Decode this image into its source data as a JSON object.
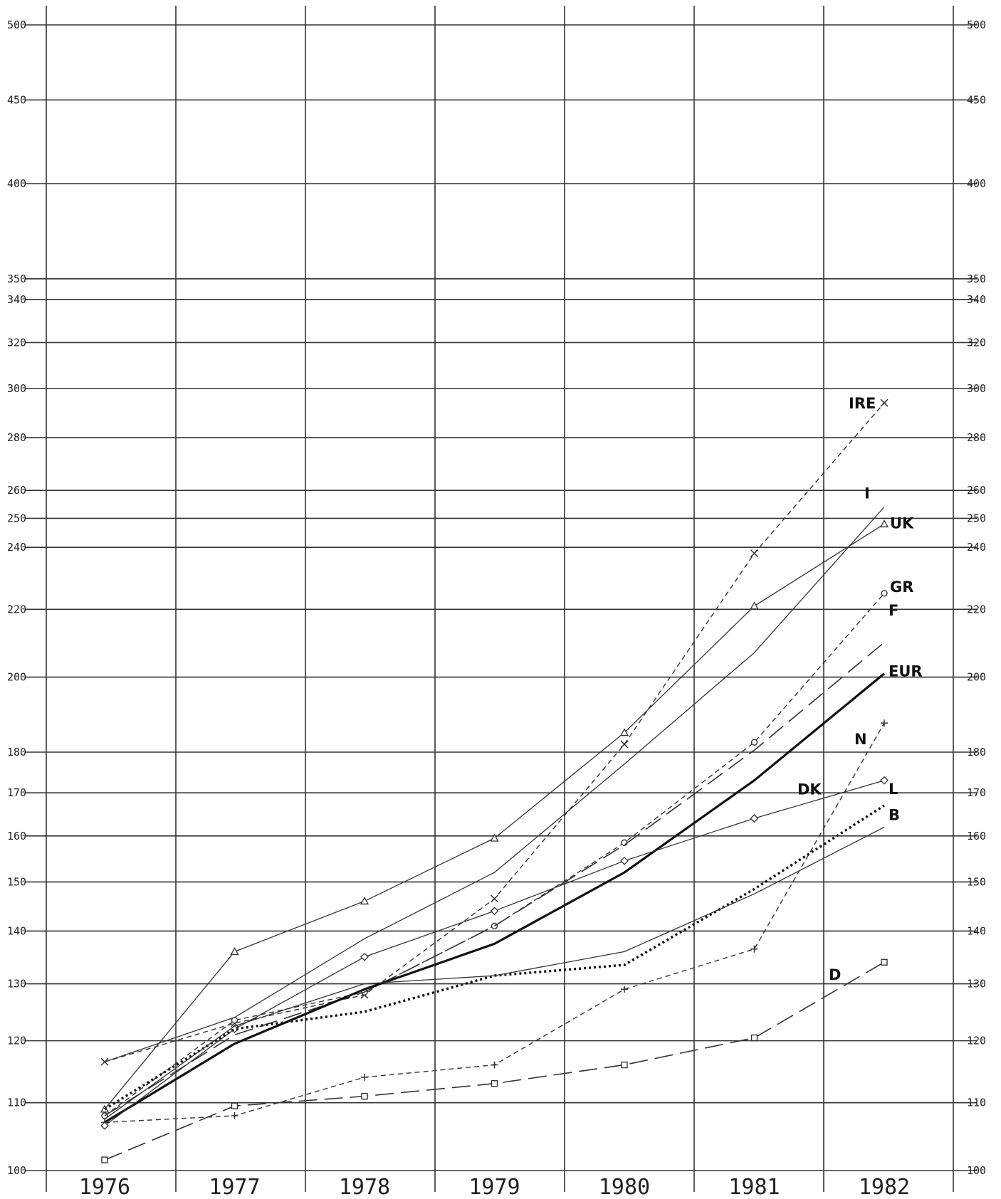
{
  "chart_data": {
    "type": "line",
    "title": "",
    "xlabel": "",
    "ylabel": "",
    "scale": "log",
    "x": [
      1976,
      1977,
      1978,
      1979,
      1980,
      1981,
      1982
    ],
    "x_tick_labels": [
      "1976",
      "1977",
      "1978",
      "1979",
      "1980",
      "1981",
      "1982"
    ],
    "y_ticks": [
      100,
      110,
      120,
      130,
      140,
      150,
      160,
      170,
      180,
      200,
      220,
      240,
      250,
      260,
      280,
      300,
      320,
      340,
      350,
      400,
      450,
      500
    ],
    "y_tick_labels": [
      "100",
      "110",
      "120",
      "130",
      "140",
      "150",
      "160",
      "170",
      "180",
      "200",
      "220",
      "240",
      "250",
      "260",
      "280",
      "300",
      "320",
      "340",
      "350",
      "400",
      "450",
      "500"
    ],
    "ylim": [
      100,
      500
    ],
    "grid": true,
    "series": [
      {
        "name": "IRE",
        "values": [
          116.5,
          123,
          128,
          146.5,
          182,
          238,
          294
        ],
        "style": "short-dash",
        "marker": "x",
        "color": "#333333"
      },
      {
        "name": "I",
        "values": [
          116.5,
          124,
          138.5,
          152,
          177,
          207,
          254
        ],
        "style": "solid-thin",
        "marker": "none",
        "color": "#333333"
      },
      {
        "name": "UK",
        "values": [
          109,
          136,
          146,
          159.5,
          185,
          221,
          248
        ],
        "style": "solid-thin",
        "marker": "triangle",
        "color": "#333333"
      },
      {
        "name": "GR",
        "values": [
          108,
          123.5,
          128.5,
          141,
          158.5,
          182.5,
          225
        ],
        "style": "short-dash",
        "marker": "circle",
        "color": "#333333"
      },
      {
        "name": "F",
        "values": [
          108,
          121,
          128.5,
          141,
          158,
          180.5,
          210
        ],
        "style": "long-dash",
        "marker": "none",
        "color": "#333333"
      },
      {
        "name": "EUR",
        "values": [
          107,
          119.5,
          129,
          137.5,
          152,
          173,
          201
        ],
        "style": "solid-thick",
        "marker": "none",
        "color": "#111111"
      },
      {
        "name": "N",
        "values": [
          107,
          108,
          114,
          116,
          129,
          136.5,
          187.5
        ],
        "style": "short-dash",
        "marker": "plus",
        "color": "#333333"
      },
      {
        "name": "DK",
        "values": [
          106.5,
          122,
          135,
          144,
          154.5,
          164,
          173
        ],
        "style": "solid-thin",
        "marker": "diamond",
        "color": "#333333"
      },
      {
        "name": "L",
        "values": [
          109,
          122,
          125,
          131.5,
          133.5,
          148.5,
          167
        ],
        "style": "dotted-thick",
        "marker": "none",
        "color": "#111111"
      },
      {
        "name": "B",
        "values": [
          107.5,
          122.5,
          130,
          131.5,
          136,
          147.5,
          162
        ],
        "style": "solid-thin",
        "marker": "none",
        "color": "#333333"
      },
      {
        "name": "D",
        "values": [
          101.5,
          109.5,
          111,
          113,
          116,
          120.5,
          134
        ],
        "style": "long-dash",
        "marker": "square",
        "color": "#333333"
      }
    ]
  }
}
